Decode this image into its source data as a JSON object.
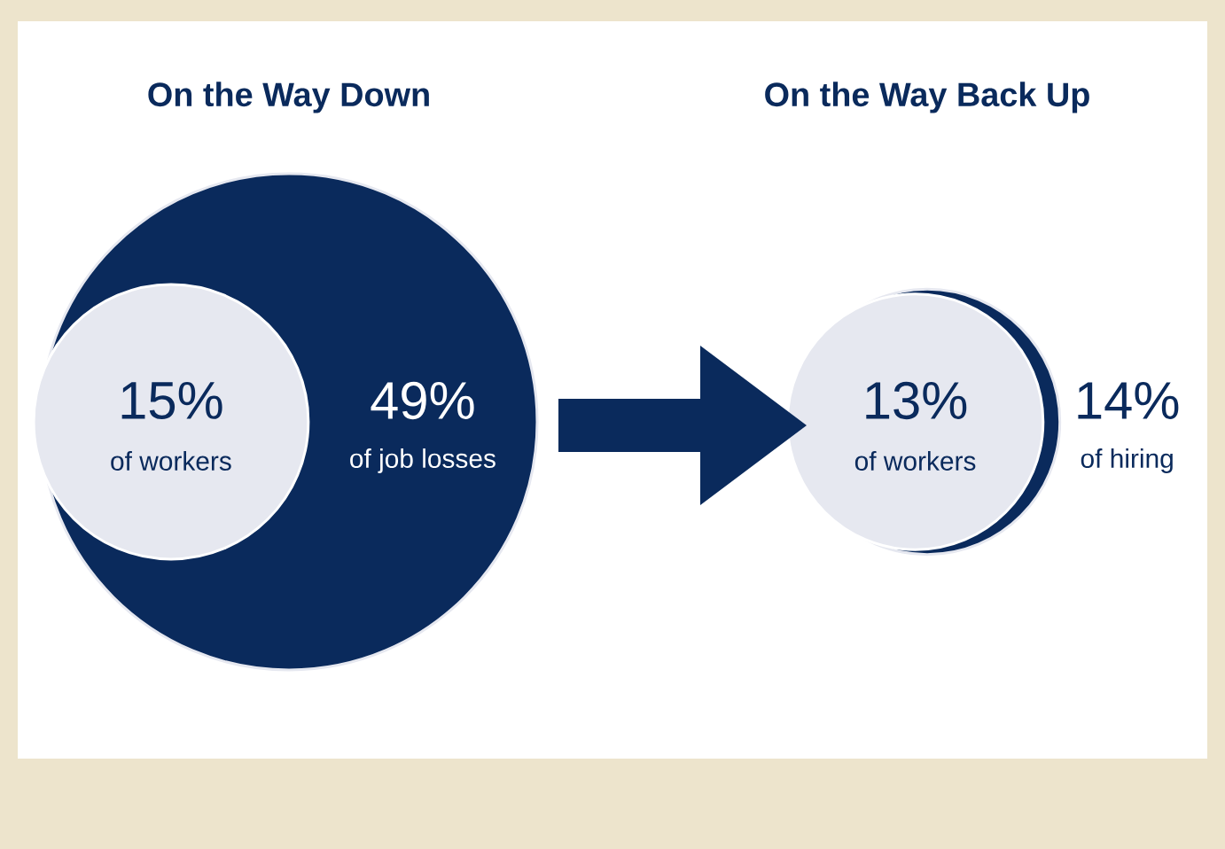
{
  "chart_data": [
    {
      "type": "other",
      "title": "On the Way Down",
      "categories": [
        "of workers",
        "of job losses"
      ],
      "values": [
        15,
        49
      ],
      "value_labels": [
        "15%",
        "49%"
      ],
      "colors": [
        "#e6e8f0",
        "#0a2a5c"
      ]
    },
    {
      "type": "other",
      "title": "On the Way Back Up",
      "categories": [
        "of workers",
        "of hiring"
      ],
      "values": [
        13,
        14
      ],
      "value_labels": [
        "13%",
        "14%"
      ],
      "colors": [
        "#e6e8f0",
        "#0a2a5c"
      ]
    }
  ]
}
